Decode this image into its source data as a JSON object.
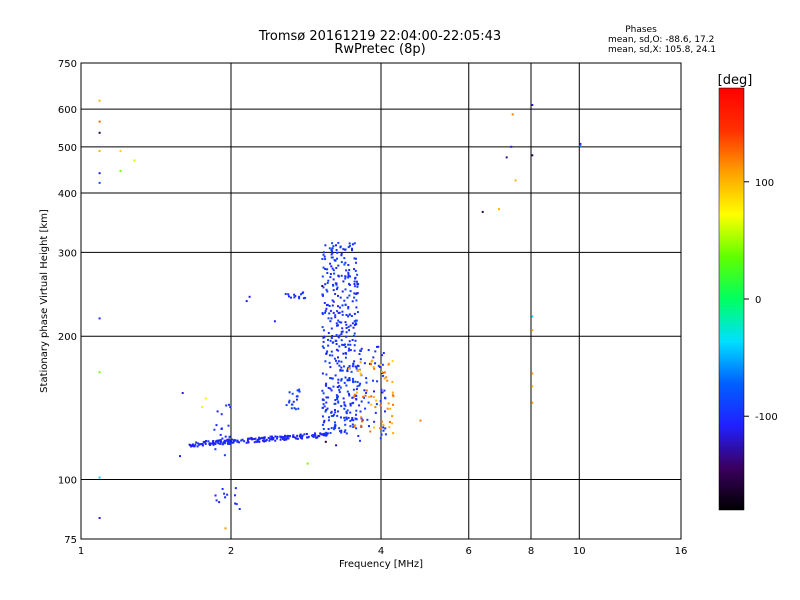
{
  "chart_data": {
    "type": "scatter",
    "title": "Tromsø 20161219 22:04:00-22:05:43",
    "subtitle": "RwPretec (8p)",
    "xlabel": "Frequency [MHz]",
    "ylabel": "Stationary phase Virtual Height [km]",
    "x_scale": "log",
    "y_scale": "log",
    "xlim": [
      1,
      16
    ],
    "ylim": [
      75,
      750
    ],
    "x_ticks": [
      1,
      2,
      4,
      6,
      8,
      10,
      16
    ],
    "y_ticks": [
      75,
      100,
      200,
      300,
      400,
      500,
      600,
      750
    ],
    "grid": true,
    "phases": {
      "title": "Phases",
      "line1": "mean, sd,O: -88.6, 17.2",
      "line2": "mean, sd,X: 105.8, 24.1"
    },
    "colorbar": {
      "label": "[deg]",
      "range": [
        -180,
        180
      ],
      "ticks": [
        100,
        0,
        -100
      ],
      "colors": [
        "#000000",
        "#3a0060",
        "#2020ff",
        "#0060ff",
        "#00e0ff",
        "#00ff60",
        "#60ff00",
        "#ffff00",
        "#ffa000",
        "#ff3000",
        "#ff0000"
      ]
    },
    "clusters": [
      {
        "name": "o-trace-low",
        "x_range": [
          1.65,
          3.15
        ],
        "y_range": [
          117,
          125
        ],
        "phase_range": [
          -115,
          -95
        ],
        "count": 220,
        "curve": "rising"
      },
      {
        "name": "o-trace-high",
        "x_range": [
          3.05,
          3.6
        ],
        "y_range": [
          125,
          315
        ],
        "phase_range": [
          -110,
          -85
        ],
        "count": 420
      },
      {
        "name": "o-tail",
        "x_range": [
          3.6,
          4.1
        ],
        "y_range": [
          120,
          190
        ],
        "phase_range": [
          -110,
          -90
        ],
        "count": 60
      },
      {
        "name": "x-trace",
        "x_range": [
          3.45,
          4.25
        ],
        "y_range": [
          125,
          178
        ],
        "phase_range": [
          90,
          130
        ],
        "count": 55
      },
      {
        "name": "upper-band",
        "x_range": [
          2.55,
          2.85
        ],
        "y_range": [
          240,
          248
        ],
        "phase_range": [
          -110,
          -90
        ],
        "count": 14
      },
      {
        "name": "mid-band",
        "x_range": [
          2.55,
          2.75
        ],
        "y_range": [
          140,
          155
        ],
        "phase_range": [
          -110,
          -80
        ],
        "count": 18
      },
      {
        "name": "side-column",
        "x_range": [
          1.85,
          2.0
        ],
        "y_range": [
          112,
          145
        ],
        "phase_range": [
          -110,
          -90
        ],
        "count": 20
      },
      {
        "name": "low-column",
        "x_range": [
          1.85,
          2.1
        ],
        "y_range": [
          86,
          96
        ],
        "phase_range": [
          -110,
          -90
        ],
        "count": 12
      }
    ],
    "points": [
      {
        "x": 1.09,
        "y": 625,
        "phase": 100
      },
      {
        "x": 1.09,
        "y": 565,
        "phase": 130
      },
      {
        "x": 1.09,
        "y": 535,
        "phase": -150
      },
      {
        "x": 1.09,
        "y": 490,
        "phase": 100
      },
      {
        "x": 1.09,
        "y": 440,
        "phase": -110
      },
      {
        "x": 1.09,
        "y": 420,
        "phase": -80
      },
      {
        "x": 1.09,
        "y": 218,
        "phase": -100
      },
      {
        "x": 1.09,
        "y": 168,
        "phase": 40
      },
      {
        "x": 1.09,
        "y": 101,
        "phase": -40
      },
      {
        "x": 1.09,
        "y": 83,
        "phase": -110
      },
      {
        "x": 1.2,
        "y": 490,
        "phase": 90
      },
      {
        "x": 1.2,
        "y": 445,
        "phase": 40
      },
      {
        "x": 1.28,
        "y": 468,
        "phase": 60
      },
      {
        "x": 1.58,
        "y": 112,
        "phase": -110
      },
      {
        "x": 1.6,
        "y": 152,
        "phase": -110
      },
      {
        "x": 1.75,
        "y": 142,
        "phase": 70
      },
      {
        "x": 1.78,
        "y": 148,
        "phase": 70
      },
      {
        "x": 1.95,
        "y": 79,
        "phase": 110
      },
      {
        "x": 2.15,
        "y": 237,
        "phase": -110
      },
      {
        "x": 2.18,
        "y": 242,
        "phase": -110
      },
      {
        "x": 2.45,
        "y": 215,
        "phase": -110
      },
      {
        "x": 2.85,
        "y": 108,
        "phase": 40
      },
      {
        "x": 3.05,
        "y": 255,
        "phase": -150
      },
      {
        "x": 3.1,
        "y": 120,
        "phase": -160
      },
      {
        "x": 3.25,
        "y": 118,
        "phase": -130
      },
      {
        "x": 3.95,
        "y": 190,
        "phase": -110
      },
      {
        "x": 4.15,
        "y": 175,
        "phase": 110
      },
      {
        "x": 4.8,
        "y": 133,
        "phase": 120
      },
      {
        "x": 6.4,
        "y": 365,
        "phase": -150
      },
      {
        "x": 6.9,
        "y": 370,
        "phase": 100
      },
      {
        "x": 7.15,
        "y": 475,
        "phase": -130
      },
      {
        "x": 7.3,
        "y": 500,
        "phase": -110
      },
      {
        "x": 7.35,
        "y": 585,
        "phase": 120
      },
      {
        "x": 7.45,
        "y": 425,
        "phase": 100
      },
      {
        "x": 8.05,
        "y": 612,
        "phase": -110
      },
      {
        "x": 8.05,
        "y": 480,
        "phase": -150
      },
      {
        "x": 8.05,
        "y": 220,
        "phase": -40
      },
      {
        "x": 8.05,
        "y": 206,
        "phase": 100
      },
      {
        "x": 8.05,
        "y": 167,
        "phase": 110
      },
      {
        "x": 8.05,
        "y": 157,
        "phase": 100
      },
      {
        "x": 8.05,
        "y": 145,
        "phase": 110
      },
      {
        "x": 10.05,
        "y": 507,
        "phase": -110
      },
      {
        "x": 10.05,
        "y": 502,
        "phase": -60
      }
    ]
  }
}
